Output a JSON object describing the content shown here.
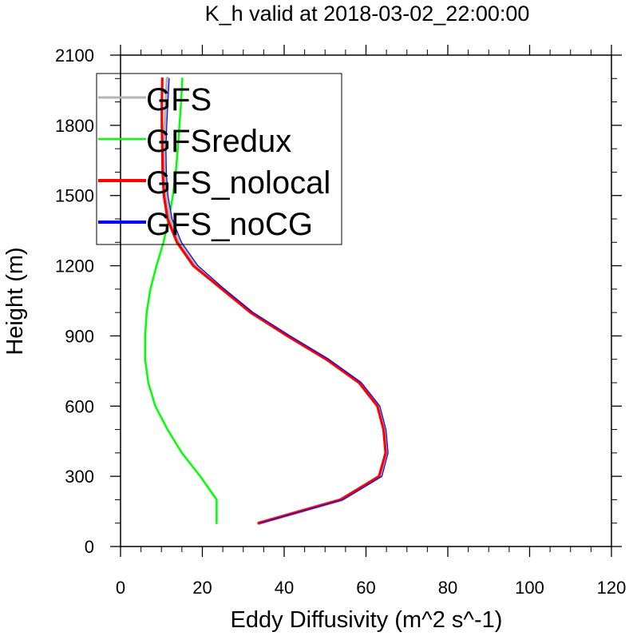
{
  "chart_data": {
    "type": "line",
    "title": "K_h valid at 2018-03-02_22:00:00",
    "xlabel": "Eddy Diffusivity (m^2 s^-1)",
    "ylabel": "Height (m)",
    "xlim": [
      0,
      120
    ],
    "ylim": [
      0,
      2100
    ],
    "xticks": [
      0,
      20,
      40,
      60,
      80,
      100,
      120
    ],
    "yticks": [
      0,
      300,
      600,
      900,
      1200,
      1500,
      1800,
      2100
    ],
    "xtick_labels": [
      "0",
      "20",
      "40",
      "60",
      "80",
      "100",
      "120"
    ],
    "ytick_labels": [
      "0",
      "300",
      "600",
      "900",
      "1200",
      "1500",
      "1800",
      "2100"
    ],
    "legend_position": "top-left",
    "series": [
      {
        "name": "GFS",
        "color": "#b4b4b4",
        "points": [
          [
            33.8,
            100
          ],
          [
            54,
            200
          ],
          [
            63.5,
            300
          ],
          [
            65,
            400
          ],
          [
            64.5,
            500
          ],
          [
            63,
            600
          ],
          [
            58.5,
            700
          ],
          [
            50.5,
            800
          ],
          [
            41,
            900
          ],
          [
            32,
            1000
          ],
          [
            25,
            1100
          ],
          [
            18.5,
            1200
          ],
          [
            14.5,
            1300
          ],
          [
            12.2,
            1400
          ],
          [
            11.2,
            1500
          ],
          [
            10.8,
            1600
          ],
          [
            10.7,
            1700
          ],
          [
            10.9,
            1800
          ],
          [
            11.2,
            1900
          ],
          [
            11.5,
            2000
          ]
        ]
      },
      {
        "name": "GFSredux",
        "color": "#00ff00",
        "points": [
          [
            23.5,
            100
          ],
          [
            23.5,
            200
          ],
          [
            19.5,
            300
          ],
          [
            15,
            400
          ],
          [
            11.5,
            500
          ],
          [
            8.5,
            600
          ],
          [
            6.8,
            700
          ],
          [
            6,
            800
          ],
          [
            6,
            900
          ],
          [
            6.4,
            1000
          ],
          [
            7.3,
            1100
          ],
          [
            8.8,
            1200
          ],
          [
            10.5,
            1300
          ],
          [
            11.8,
            1400
          ],
          [
            12.8,
            1500
          ],
          [
            13.5,
            1600
          ],
          [
            14,
            1700
          ],
          [
            14.4,
            1800
          ],
          [
            14.8,
            1900
          ],
          [
            15.1,
            2000
          ]
        ]
      },
      {
        "name": "GFS_nolocal",
        "color": "#ff0000",
        "points": [
          [
            33.8,
            100
          ],
          [
            53.8,
            200
          ],
          [
            63.2,
            300
          ],
          [
            64.8,
            400
          ],
          [
            64.3,
            500
          ],
          [
            62.8,
            600
          ],
          [
            58.3,
            700
          ],
          [
            50.3,
            800
          ],
          [
            40.8,
            900
          ],
          [
            31.8,
            1000
          ],
          [
            24.8,
            1100
          ],
          [
            17.8,
            1200
          ],
          [
            13.8,
            1300
          ],
          [
            11.5,
            1400
          ],
          [
            10.6,
            1500
          ],
          [
            10.3,
            1600
          ],
          [
            10.2,
            1700
          ],
          [
            10.1,
            1800
          ],
          [
            10.1,
            1900
          ],
          [
            10.2,
            2000
          ]
        ]
      },
      {
        "name": "GFS_noCG",
        "color": "#0000ff",
        "points": [
          [
            34.2,
            100
          ],
          [
            54.4,
            200
          ],
          [
            63.9,
            300
          ],
          [
            65.4,
            400
          ],
          [
            64.9,
            500
          ],
          [
            63.4,
            600
          ],
          [
            58.9,
            700
          ],
          [
            50.9,
            800
          ],
          [
            41.4,
            900
          ],
          [
            32.4,
            1000
          ],
          [
            25.4,
            1100
          ],
          [
            18.9,
            1200
          ],
          [
            14.9,
            1300
          ],
          [
            12.6,
            1400
          ],
          [
            11.6,
            1500
          ],
          [
            11.2,
            1600
          ],
          [
            11.1,
            1700
          ],
          [
            11.3,
            1800
          ],
          [
            11.6,
            1900
          ],
          [
            11.9,
            2000
          ]
        ]
      }
    ]
  }
}
